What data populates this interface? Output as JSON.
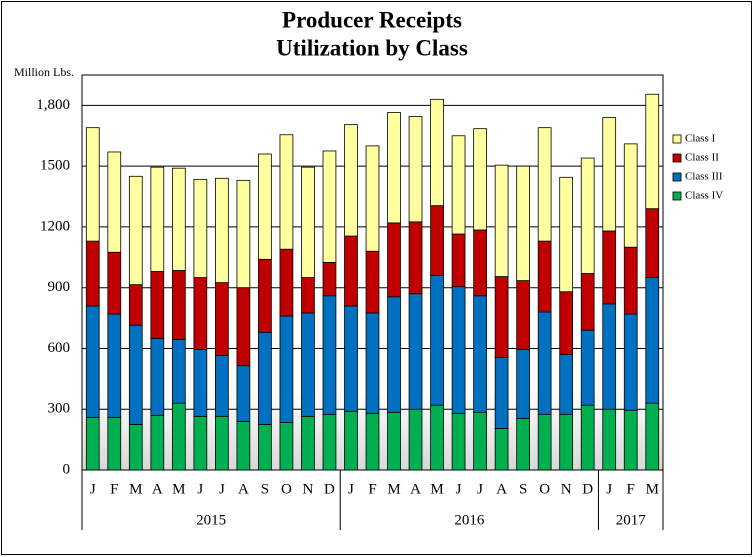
{
  "chart_data": {
    "type": "stacked_bar",
    "title": [
      "Producer Receipts",
      "Utilization by Class"
    ],
    "y_label": "Million Lbs.",
    "groups": [
      {
        "label": "2015",
        "categories": [
          "J",
          "F",
          "M",
          "A",
          "M",
          "J",
          "J",
          "A",
          "S",
          "O",
          "N",
          "D"
        ]
      },
      {
        "label": "2016",
        "categories": [
          "J",
          "F",
          "M",
          "A",
          "M",
          "J",
          "J",
          "A",
          "S",
          "O",
          "N",
          "D"
        ]
      },
      {
        "label": "2017",
        "categories": [
          "J",
          "F",
          "M"
        ]
      }
    ],
    "series": [
      {
        "name": "Class I",
        "color": "#ffffa0",
        "values": [
          560,
          495,
          535,
          515,
          505,
          485,
          515,
          530,
          520,
          565,
          545,
          550,
          550,
          520,
          545,
          520,
          525,
          485,
          500,
          550,
          565,
          560,
          565,
          570,
          560,
          510,
          565
        ]
      },
      {
        "name": "Class II",
        "color": "#c00000",
        "values": [
          320,
          305,
          200,
          330,
          340,
          355,
          360,
          385,
          360,
          330,
          175,
          165,
          345,
          305,
          365,
          355,
          345,
          260,
          325,
          400,
          340,
          350,
          310,
          280,
          360,
          330,
          340
        ]
      },
      {
        "name": "Class III",
        "color": "#0070c0",
        "values": [
          550,
          510,
          490,
          380,
          315,
          330,
          300,
          275,
          455,
          525,
          510,
          585,
          520,
          495,
          570,
          570,
          640,
          625,
          575,
          350,
          340,
          505,
          295,
          370,
          520,
          475,
          620
        ]
      },
      {
        "name": "Class IV",
        "color": "#00b050",
        "values": [
          260,
          260,
          225,
          270,
          330,
          265,
          265,
          240,
          225,
          235,
          265,
          275,
          290,
          280,
          285,
          300,
          320,
          280,
          285,
          205,
          255,
          275,
          275,
          320,
          300,
          295,
          330
        ]
      }
    ],
    "ylim": [
      0,
      1950
    ],
    "yticks": [
      0,
      300,
      600,
      900,
      1200,
      1500,
      {
        "value": 1800,
        "label": "1,800"
      }
    ],
    "grid": true
  }
}
